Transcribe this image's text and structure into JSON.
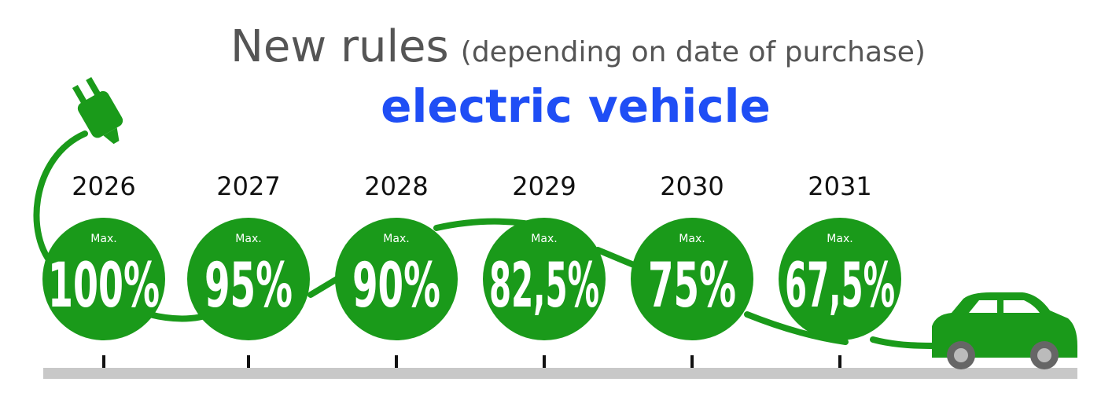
{
  "header": {
    "title": "New rules",
    "subtitle": "(depending on date of purchase)",
    "topic": "electric vehicle"
  },
  "timeline": [
    {
      "year": "2026",
      "prefix": "Max.",
      "value": "100%"
    },
    {
      "year": "2027",
      "prefix": "Max.",
      "value": "95%"
    },
    {
      "year": "2028",
      "prefix": "Max.",
      "value": "90%"
    },
    {
      "year": "2029",
      "prefix": "Max.",
      "value": "82,5%"
    },
    {
      "year": "2030",
      "prefix": "Max.",
      "value": "75%"
    },
    {
      "year": "2031",
      "prefix": "Max.",
      "value": "67,5%"
    }
  ]
}
